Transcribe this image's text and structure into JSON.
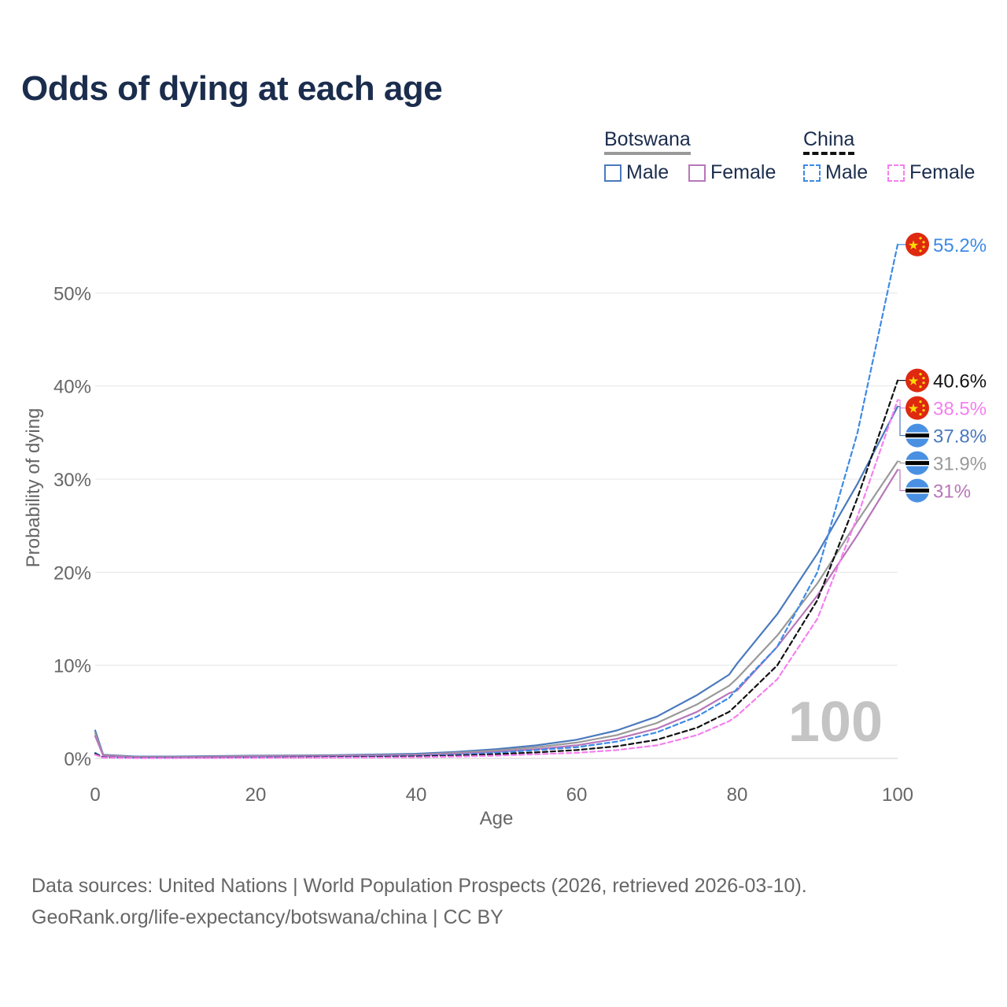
{
  "title": "Odds of dying at each age",
  "legend": {
    "groups": [
      {
        "name": "Botswana",
        "line_style": "solid",
        "line_color": "#999999"
      },
      {
        "name": "China",
        "line_style": "dashed",
        "line_color": "#111111"
      }
    ],
    "items": [
      {
        "label": "Male",
        "color": "#4a79bd",
        "style": "solid"
      },
      {
        "label": "Female",
        "color": "#b777b9",
        "style": "solid"
      },
      {
        "label": "Male",
        "color": "#3d8ae6",
        "style": "dashed"
      },
      {
        "label": "Female",
        "color": "#f57ff0",
        "style": "dashed"
      }
    ]
  },
  "source": {
    "line1": "Data sources: United Nations | World Population Prospects (2026, retrieved 2026-03-10).",
    "line2": "GeoRank.org/life-expectancy/botswana/china | CC BY"
  },
  "chart_data": {
    "type": "line",
    "title": "Odds of dying at each age",
    "xlabel": "Age",
    "ylabel": "Probability of dying",
    "xlim": [
      0,
      100
    ],
    "ylim": [
      0,
      60
    ],
    "xticks": [
      0,
      20,
      40,
      60,
      80,
      100
    ],
    "yticks": [
      0,
      10,
      20,
      30,
      40,
      50
    ],
    "ytick_labels": [
      "0%",
      "10%",
      "20%",
      "30%",
      "40%",
      "50%"
    ],
    "grid": true,
    "age_watermark": "100",
    "x": [
      0,
      1,
      5,
      10,
      20,
      30,
      40,
      45,
      50,
      55,
      60,
      65,
      70,
      75,
      79,
      80,
      85,
      90,
      95,
      100
    ],
    "series": [
      {
        "name": "Botswana Male",
        "country": "Botswana",
        "sex": "Male",
        "color": "#4a79bd",
        "dash": false,
        "values": [
          3.0,
          0.4,
          0.2,
          0.2,
          0.3,
          0.35,
          0.5,
          0.7,
          1.0,
          1.4,
          2.0,
          3.0,
          4.5,
          6.8,
          9.0,
          10.2,
          15.5,
          22.0,
          29.5,
          37.8
        ],
        "end_label": "37.8%"
      },
      {
        "name": "Botswana Both sexes",
        "country": "Botswana",
        "sex": "Both sexes",
        "color": "#999999",
        "dash": false,
        "values": [
          2.7,
          0.35,
          0.15,
          0.15,
          0.25,
          0.3,
          0.4,
          0.6,
          0.85,
          1.2,
          1.7,
          2.5,
          3.8,
          5.8,
          7.8,
          8.6,
          13.2,
          18.8,
          25.5,
          31.9
        ],
        "end_label": "31.9%"
      },
      {
        "name": "Botswana Female",
        "country": "Botswana",
        "sex": "Female",
        "color": "#b777b9",
        "dash": false,
        "values": [
          2.4,
          0.3,
          0.1,
          0.1,
          0.2,
          0.25,
          0.35,
          0.5,
          0.7,
          1.0,
          1.4,
          2.1,
          3.2,
          5.0,
          7.0,
          7.3,
          12.0,
          17.5,
          24.0,
          31.0
        ],
        "end_label": "31%"
      },
      {
        "name": "China Male",
        "country": "China",
        "sex": "Male",
        "color": "#3d8ae6",
        "dash": true,
        "values": [
          0.6,
          0.1,
          0.05,
          0.05,
          0.1,
          0.15,
          0.25,
          0.4,
          0.6,
          0.9,
          1.2,
          1.8,
          2.8,
          4.5,
          6.5,
          7.5,
          12.0,
          20.0,
          35.0,
          55.2
        ],
        "end_label": "55.2%"
      },
      {
        "name": "China Both sexes",
        "country": "China",
        "sex": "Both sexes",
        "color": "#111111",
        "dash": true,
        "values": [
          0.5,
          0.1,
          0.05,
          0.05,
          0.08,
          0.12,
          0.2,
          0.3,
          0.45,
          0.65,
          0.9,
          1.3,
          2.0,
          3.3,
          5.0,
          5.8,
          10.0,
          17.0,
          28.0,
          40.6
        ],
        "end_label": "40.6%"
      },
      {
        "name": "China Female",
        "country": "China",
        "sex": "Female",
        "color": "#f57ff0",
        "dash": true,
        "values": [
          0.4,
          0.08,
          0.03,
          0.03,
          0.05,
          0.08,
          0.12,
          0.2,
          0.3,
          0.45,
          0.6,
          0.9,
          1.4,
          2.5,
          4.0,
          4.6,
          8.5,
          15.0,
          26.0,
          38.5
        ],
        "end_label": "38.5%"
      }
    ]
  }
}
